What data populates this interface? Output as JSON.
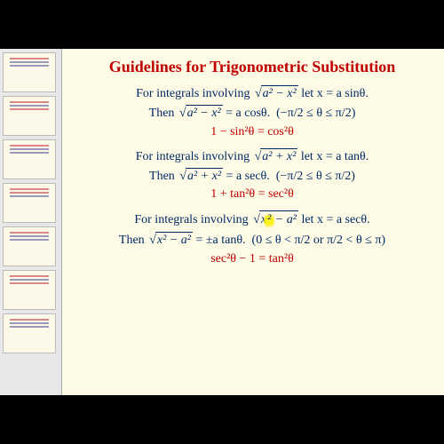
{
  "slide": {
    "background_color": "#fdfae5",
    "title": {
      "text": "Guidelines for Trigonometric Substitution",
      "color": "#c00000",
      "fontsize": 18,
      "weight": "bold"
    },
    "body_color": "#002a66",
    "identity_color": "#c00000",
    "body_fontsize": 14,
    "rules": [
      {
        "intro_prefix": "For integrals involving ",
        "root_expr": "a² − x²",
        "let_text": " let x = a sinθ.",
        "then_prefix": "Then ",
        "then_root": "a² − x²",
        "then_eq": " = a cosθ.",
        "interval": "(−π/2 ≤ θ ≤ π/2)",
        "identity": "1 − sin²θ = cos²θ",
        "highlight": null
      },
      {
        "intro_prefix": "For integrals involving ",
        "root_expr": "a² + x²",
        "let_text": " let x = a tanθ.",
        "then_prefix": "Then ",
        "then_root": "a² + x²",
        "then_eq": " = a secθ.",
        "interval": "(−π/2 ≤ θ ≤ π/2)",
        "identity": "1 + tan²θ = sec²θ",
        "highlight": null
      },
      {
        "intro_prefix": "For integrals involving ",
        "root_expr_pre": "x",
        "root_expr_hl": "²",
        "root_expr_post": " − a²",
        "let_text": " let x = a secθ.",
        "then_prefix": "Then ",
        "then_root": "x² − a²",
        "then_eq": " = ±a tanθ.",
        "interval": "(0 ≤ θ < π/2 or π/2 < θ ≤ π)",
        "identity": "sec²θ − 1 = tan²θ",
        "highlight": true
      }
    ]
  },
  "thumbnails": {
    "count": 7,
    "background": "#fdf9e8",
    "accent1": "#d88",
    "accent2": "#99b"
  }
}
